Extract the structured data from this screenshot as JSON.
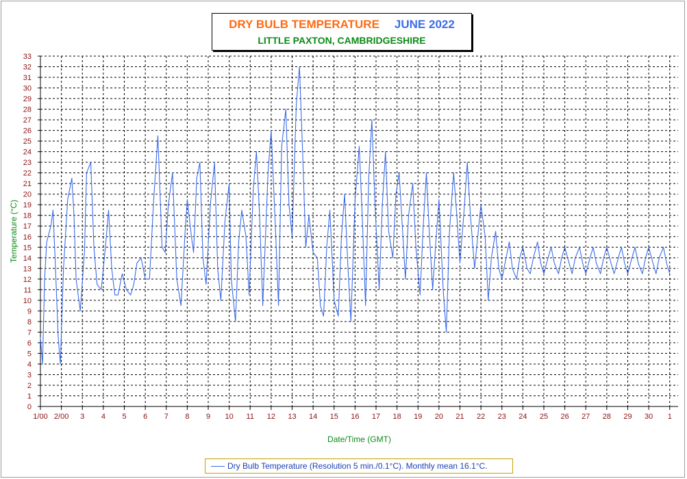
{
  "title": {
    "main": "DRY BULB TEMPERATURE",
    "month": "JUNE 2022",
    "subtitle": "LITTLE PAXTON, CAMBRIDGESHIRE"
  },
  "legend_text": "Dry Bulb Temperature (Resolution 5 min./0.1°C). Monthly mean 16.1°C.",
  "colors": {
    "title_main": "#ff6a13",
    "title_month": "#3a6be8",
    "subtitle": "#0b8a16",
    "series_line": "#3a6be8",
    "axis_labels": "#0b8a16",
    "tick_labels": "#8b1010"
  },
  "chart_data": {
    "type": "line",
    "title": "DRY BULB TEMPERATURE JUNE 2022",
    "subtitle": "LITTLE PAXTON, CAMBRIDGESHIRE",
    "xlabel": "Date/Time (GMT)",
    "ylabel": "Temperature (°C)",
    "x_tick_labels": [
      "1/00",
      "2/00",
      "3",
      "4",
      "5",
      "6",
      "7",
      "8",
      "9",
      "10",
      "11",
      "12",
      "13",
      "14",
      "15",
      "16",
      "17",
      "18",
      "19",
      "20",
      "21",
      "22",
      "23",
      "24",
      "25",
      "26",
      "27",
      "28",
      "29",
      "30",
      "1"
    ],
    "ylim": [
      0,
      33
    ],
    "xlim_days": [
      0,
      30.4
    ],
    "grid": true,
    "legend_position": "bottom-center",
    "series": [
      {
        "name": "Dry Bulb Temperature (Resolution 5 min./0.1°C). Monthly mean 16.1°C.",
        "x_day_offset": [
          0,
          0.1,
          0.2,
          0.3,
          0.5,
          0.6,
          0.7,
          0.85,
          0.95,
          1.1,
          1.3,
          1.5,
          1.6,
          1.7,
          1.9,
          2.1,
          2.2,
          2.4,
          2.55,
          2.7,
          2.9,
          3.1,
          3.25,
          3.4,
          3.55,
          3.7,
          3.9,
          4.1,
          4.3,
          4.45,
          4.6,
          4.8,
          5.0,
          5.2,
          5.4,
          5.6,
          5.8,
          5.95,
          6.1,
          6.3,
          6.5,
          6.7,
          6.9,
          7.0,
          7.2,
          7.3,
          7.45,
          7.6,
          7.75,
          7.9,
          8.1,
          8.3,
          8.45,
          8.6,
          8.8,
          9.0,
          9.1,
          9.3,
          9.45,
          9.6,
          9.8,
          9.95,
          10.15,
          10.3,
          10.45,
          10.6,
          10.85,
          11.0,
          11.2,
          11.35,
          11.5,
          11.7,
          11.85,
          12.0,
          12.2,
          12.35,
          12.5,
          12.65,
          12.8,
          13.0,
          13.2,
          13.35,
          13.5,
          13.65,
          13.8,
          14.0,
          14.2,
          14.35,
          14.5,
          14.65,
          14.8,
          15.0,
          15.2,
          15.35,
          15.5,
          15.65,
          15.8,
          15.95,
          16.15,
          16.3,
          16.45,
          16.6,
          16.8,
          16.95,
          17.1,
          17.25,
          17.4,
          17.55,
          17.75,
          17.9,
          18.1,
          18.25,
          18.4,
          18.55,
          18.7,
          18.85,
          19.0,
          19.2,
          19.35,
          19.5,
          19.7,
          19.85,
          20.0,
          20.2,
          20.35,
          20.5,
          20.7,
          20.85,
          21.0,
          21.2,
          21.35,
          21.5,
          21.7,
          21.85,
          22.0,
          22.2,
          22.35,
          22.5,
          22.7,
          22.85,
          23.0,
          23.2,
          23.35,
          23.5,
          23.7,
          23.85,
          24.0,
          24.2,
          24.35,
          24.5,
          24.7,
          24.85,
          25.0,
          25.2,
          25.35,
          25.5,
          25.7,
          25.85,
          26.0,
          26.2,
          26.35,
          26.5,
          26.7,
          26.85,
          27.0,
          27.2,
          27.35,
          27.55,
          27.7,
          27.85,
          28.0,
          28.2,
          28.35,
          28.5,
          28.7,
          28.85,
          29.0,
          29.2,
          29.35,
          29.5,
          29.7,
          29.85,
          30.0,
          30.2,
          30.35
        ],
        "values": [
          6.5,
          4.0,
          12.0,
          15.5,
          17.0,
          18.5,
          14.0,
          6.5,
          4.0,
          13.0,
          19.5,
          21.5,
          18.0,
          12.0,
          9.0,
          14.5,
          22.0,
          23.0,
          15.0,
          11.5,
          11.0,
          15.0,
          18.5,
          13.0,
          10.5,
          10.5,
          12.5,
          11.0,
          10.5,
          11.5,
          13.5,
          14.0,
          12.0,
          12.0,
          19.5,
          25.5,
          15.0,
          14.5,
          19.0,
          22.0,
          12.0,
          9.5,
          16.5,
          19.5,
          16.0,
          14.5,
          21.5,
          23.0,
          14.0,
          11.5,
          19.0,
          23.0,
          13.0,
          10.0,
          17.5,
          21.0,
          12.0,
          8.0,
          15.5,
          18.5,
          16.0,
          10.5,
          20.5,
          24.0,
          18.0,
          9.5,
          22.0,
          26.0,
          17.0,
          9.5,
          24.5,
          28.0,
          19.0,
          16.0,
          28.5,
          32.0,
          24.0,
          15.0,
          18.0,
          14.5,
          14.0,
          9.5,
          8.5,
          15.0,
          18.5,
          10.0,
          8.5,
          16.0,
          20.0,
          13.5,
          8.0,
          19.5,
          24.5,
          17.5,
          9.5,
          21.5,
          27.0,
          19.0,
          11.0,
          19.0,
          24.0,
          16.5,
          14.0,
          20.0,
          22.0,
          17.0,
          12.0,
          18.0,
          21.0,
          15.0,
          10.5,
          17.0,
          22.0,
          16.0,
          11.0,
          15.5,
          19.5,
          11.0,
          7.0,
          16.5,
          22.0,
          18.0,
          13.5,
          18.5,
          23.0,
          18.0,
          13.0,
          16.0,
          19.0,
          16.0,
          10.0,
          14.0,
          16.5,
          13.0,
          12.0,
          14.0,
          15.5,
          13.0,
          12.0,
          14.0,
          15.0,
          13.0,
          12.5,
          14.0,
          15.5,
          13.5,
          12.5,
          14.0,
          15.0,
          13.5,
          12.5,
          14.0,
          15.0,
          13.5,
          12.5,
          14.0,
          15.0,
          13.5,
          12.5,
          14.0,
          15.0,
          13.5,
          12.5,
          14.0,
          15.0,
          13.5,
          12.5,
          14.0,
          15.0,
          13.5,
          12.5,
          14.0,
          15.0,
          13.5,
          12.5,
          14.0,
          15.0,
          13.5,
          12.5,
          14.0,
          15.0,
          13.5,
          12.5
        ]
      }
    ]
  }
}
